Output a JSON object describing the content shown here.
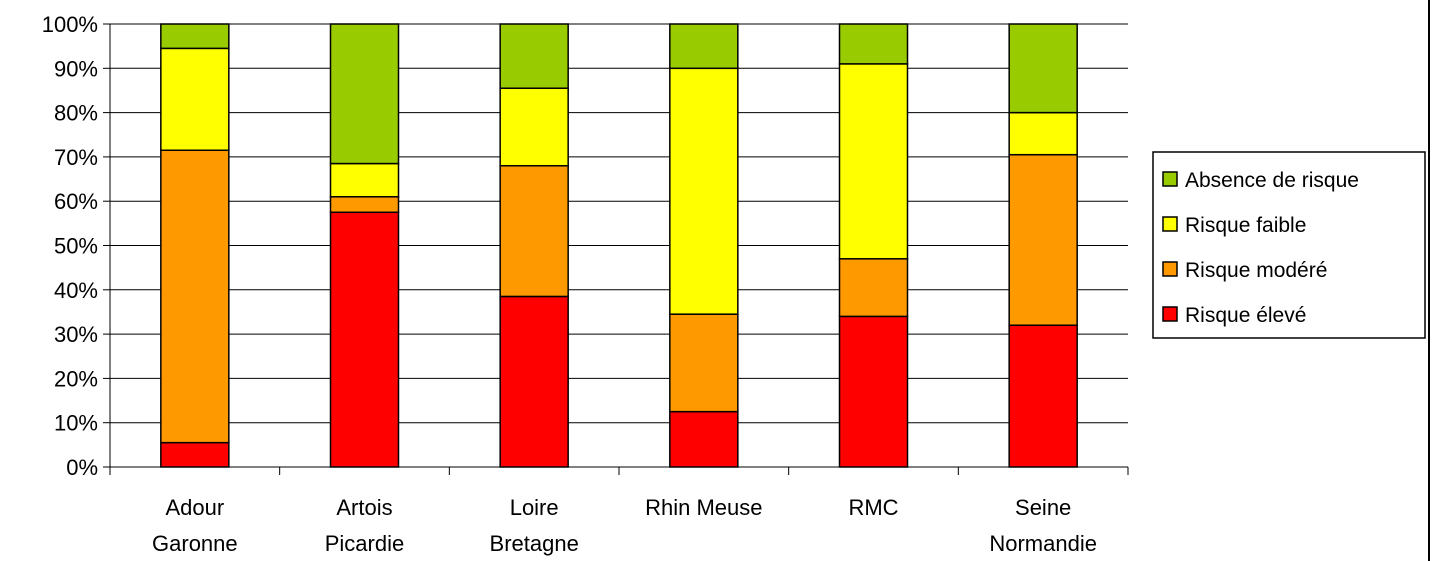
{
  "chart_data": {
    "type": "bar",
    "stacked": true,
    "percent": true,
    "categories": [
      [
        "Adour",
        "Garonne"
      ],
      [
        "Artois",
        "Picardie"
      ],
      [
        "Loire",
        "Bretagne"
      ],
      [
        "Rhin Meuse"
      ],
      [
        "RMC"
      ],
      [
        "Seine",
        "Normandie"
      ]
    ],
    "series": [
      {
        "name": "Risque élevé",
        "color": "#ff0000",
        "values": [
          5.5,
          57.5,
          38.5,
          12.5,
          34,
          32
        ]
      },
      {
        "name": "Risque modéré",
        "color": "#ff9900",
        "values": [
          66,
          3.5,
          29.5,
          22,
          13,
          38.5
        ]
      },
      {
        "name": "Risque faible",
        "color": "#ffff00",
        "values": [
          23,
          7.5,
          17.5,
          55.5,
          44,
          9.5
        ]
      },
      {
        "name": "Absence de risque",
        "color": "#99cc00",
        "values": [
          5.5,
          31.5,
          14.5,
          10,
          9,
          20
        ]
      }
    ],
    "y_ticks": [
      "0%",
      "10%",
      "20%",
      "30%",
      "40%",
      "50%",
      "60%",
      "70%",
      "80%",
      "90%",
      "100%"
    ],
    "ylim": [
      0,
      100
    ],
    "grid": true,
    "legend_position": "right",
    "legend_order": [
      "Absence de risque",
      "Risque faible",
      "Risque modéré",
      "Risque élevé"
    ]
  }
}
